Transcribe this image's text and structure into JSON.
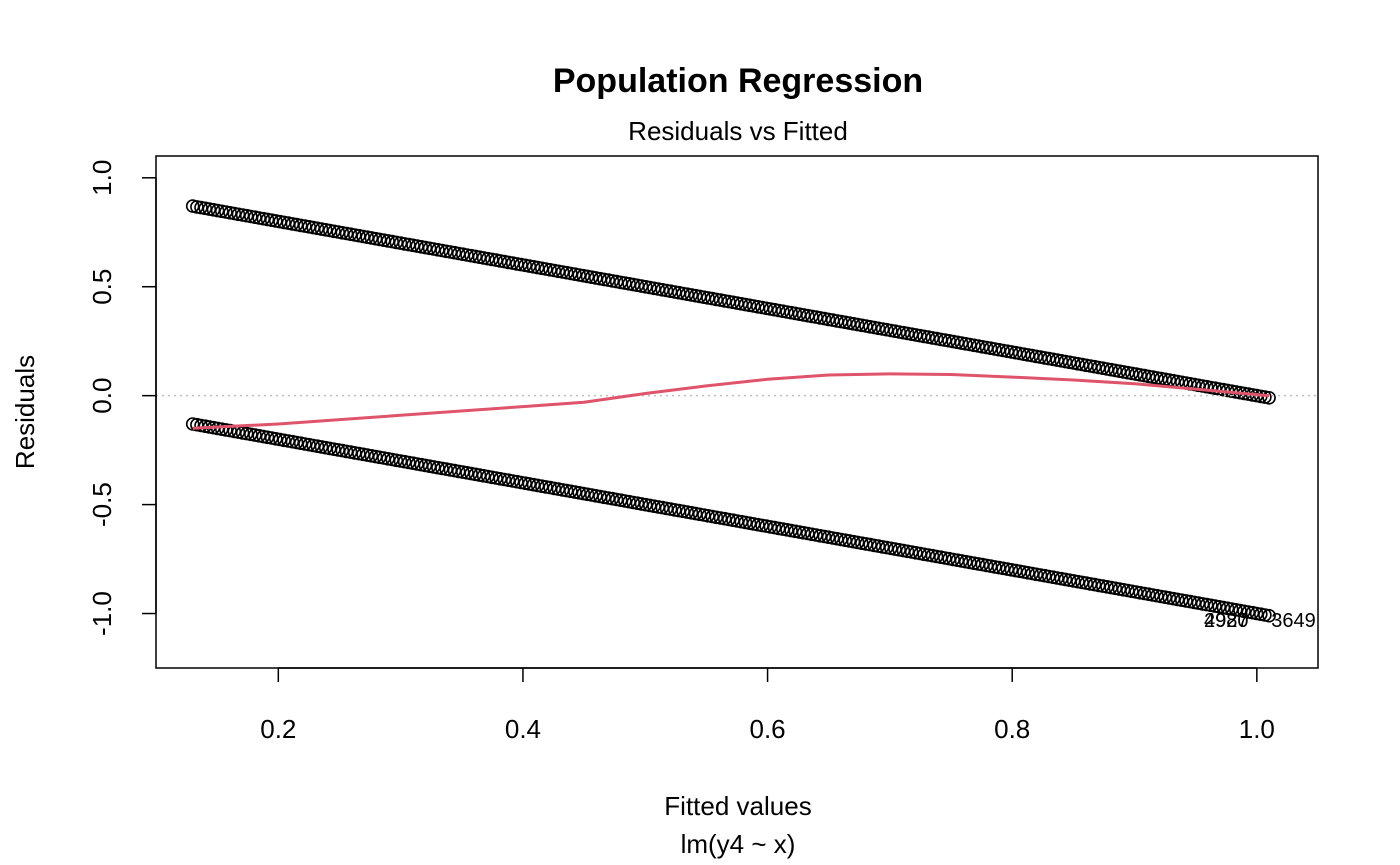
{
  "chart_data": {
    "type": "scatter",
    "title": "Population Regression",
    "subtitle": "Residuals vs Fitted",
    "xlabel": "Fitted values",
    "xlabel_sub": "lm(y4 ~ x)",
    "ylabel": "Residuals",
    "xlim": [
      0.1,
      1.05
    ],
    "ylim": [
      -1.25,
      1.1
    ],
    "xticks": [
      0.2,
      0.4,
      0.6,
      0.8,
      1.0
    ],
    "xtick_labels": [
      "0.2",
      "0.4",
      "0.6",
      "0.8",
      "1.0"
    ],
    "yticks": [
      -1.0,
      -0.5,
      0.0,
      0.5,
      1.0
    ],
    "ytick_labels": [
      "-1.0",
      "-0.5",
      "0.0",
      "0.5",
      "1.0"
    ],
    "series": [
      {
        "name": "",
        "description": "upper band: residual = 1 - fitted",
        "fitted_range": [
          0.13,
          1.01
        ],
        "residual_intercept": 1.0
      },
      {
        "name": "",
        "description": "lower band: residual = -fitted",
        "fitted_range": [
          0.13,
          1.01
        ],
        "residual_intercept": 0.0
      }
    ],
    "smoother": {
      "color": "#DF536B",
      "x": [
        0.13,
        0.2,
        0.3,
        0.4,
        0.45,
        0.5,
        0.55,
        0.6,
        0.65,
        0.7,
        0.75,
        0.8,
        0.85,
        0.9,
        0.95,
        1.01
      ],
      "y": [
        -0.15,
        -0.13,
        -0.09,
        -0.05,
        -0.03,
        0.01,
        0.045,
        0.075,
        0.095,
        0.1,
        0.097,
        0.085,
        0.072,
        0.055,
        0.03,
        0.0
      ]
    },
    "reference_line": {
      "y": 0,
      "style": "dotted",
      "color": "#bebebe"
    },
    "point_labels": [
      {
        "text": "2920",
        "x": 0.975,
        "y": -1.03
      },
      {
        "text": "4987",
        "x": 0.975,
        "y": -1.03
      },
      {
        "text": "3649",
        "x": 1.03,
        "y": -1.03
      }
    ],
    "grid": false
  }
}
